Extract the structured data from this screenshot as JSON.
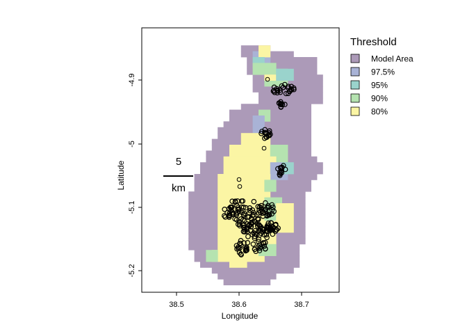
{
  "chart_data": {
    "type": "heatmap",
    "xlabel": "Longitude",
    "ylabel": "Latitude",
    "x_ticks": [
      "38.5",
      "38.6",
      "38.7"
    ],
    "y_ticks": [
      "-4.9",
      "-5",
      "-5.1",
      "-5.2"
    ],
    "legend": {
      "title": "Threshold",
      "entries": [
        {
          "label": "Model Area",
          "color": "#ac9ab8"
        },
        {
          "label": "97.5%",
          "color": "#a9b3d6"
        },
        {
          "label": "95%",
          "color": "#9ad3cc"
        },
        {
          "label": "90%",
          "color": "#b5e3b0"
        },
        {
          "label": "80%",
          "color": "#fbf5a4"
        }
      ]
    },
    "scale_bar": {
      "value": "5",
      "unit": "km"
    },
    "marker_color": "#000000"
  }
}
